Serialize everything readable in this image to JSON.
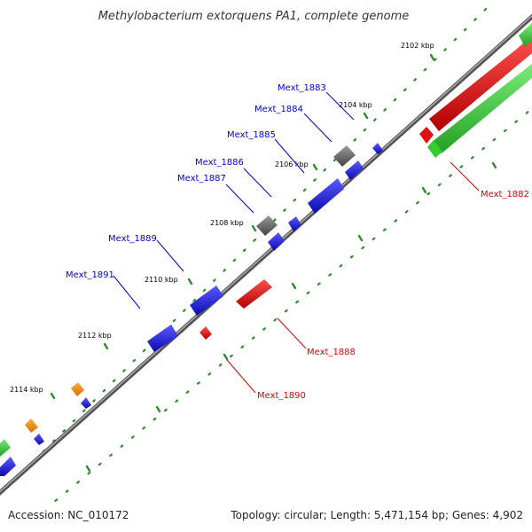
{
  "title": "Methylobacterium extorquens PA1, complete genome",
  "ticks": [
    {
      "label": "2102 kbp",
      "kbp": 2102
    },
    {
      "label": "2104 kbp",
      "kbp": 2104
    },
    {
      "label": "2106 kbp",
      "kbp": 2106
    },
    {
      "label": "2108 kbp",
      "kbp": 2108
    },
    {
      "label": "2110 kbp",
      "kbp": 2110
    },
    {
      "label": "2112 kbp",
      "kbp": 2112
    },
    {
      "label": "2114 kbp",
      "kbp": 2114
    }
  ],
  "genes": [
    {
      "name": "Mext_1882",
      "color": "#e00000"
    },
    {
      "name": "Mext_1883",
      "color": "#0000e0"
    },
    {
      "name": "Mext_1884",
      "color": "#0000e0"
    },
    {
      "name": "Mext_1885",
      "color": "#0000e0"
    },
    {
      "name": "Mext_1886",
      "color": "#0000e0"
    },
    {
      "name": "Mext_1887",
      "color": "#0000e0"
    },
    {
      "name": "Mext_1888",
      "color": "#e00000"
    },
    {
      "name": "Mext_1889",
      "color": "#0000e0"
    },
    {
      "name": "Mext_1890",
      "color": "#e00000"
    },
    {
      "name": "Mext_1891",
      "color": "#0000e0"
    }
  ],
  "colors": {
    "forward_cds": "#1a1ad8",
    "reverse_cds": "#e01010",
    "rna_or_other": "#666666",
    "orange_feature": "#f08c00",
    "green_feature": "#33cc33",
    "backbone": "#666666",
    "tick": "#2e8b2e"
  },
  "footer": {
    "accession": "Accession: NC_010172",
    "summary": "Topology: circular; Length: 5,471,154 bp; Genes: 4,902"
  }
}
